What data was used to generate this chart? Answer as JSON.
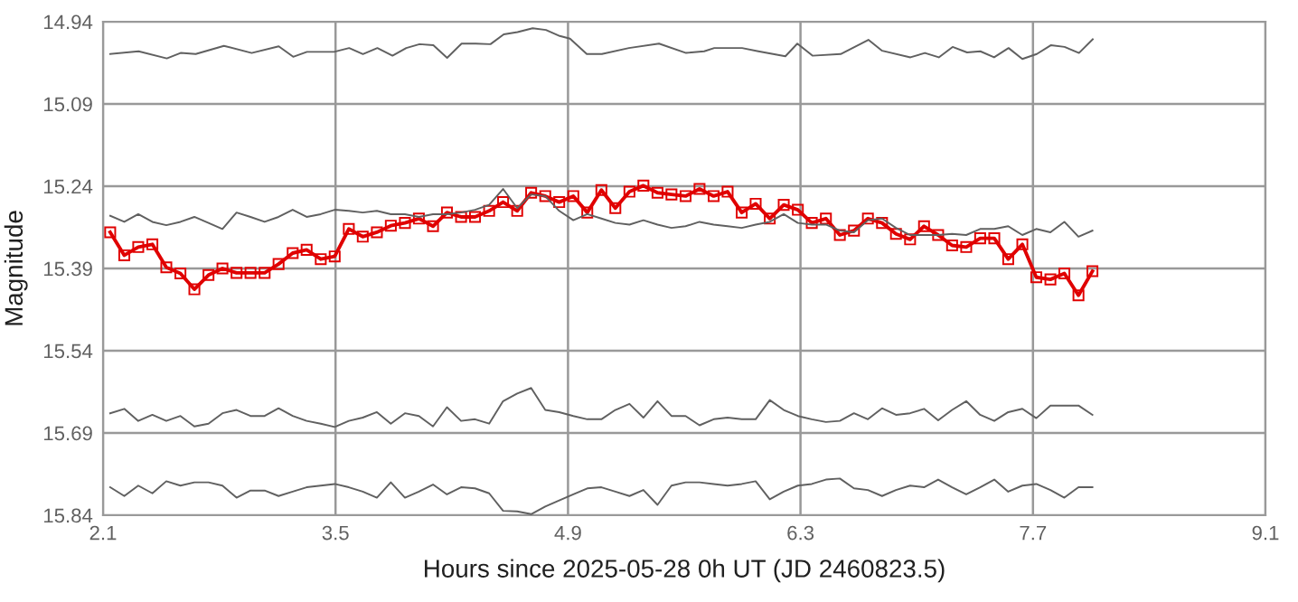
{
  "chart_data": {
    "type": "line",
    "xlabel": "Hours since 2025-05-28 0h UT (JD 2460823.5)",
    "ylabel": "Magnitude",
    "xlim": [
      2.1,
      9.1
    ],
    "xticks": [
      2.1,
      3.5,
      4.9,
      6.3,
      7.7,
      9.1
    ],
    "ylim": [
      15.84,
      14.94
    ],
    "yticks": [
      14.94,
      15.09,
      15.24,
      15.39,
      15.54,
      15.69,
      15.84
    ],
    "grid": true,
    "line_style": "solid",
    "x": [
      2.143,
      2.228,
      2.312,
      2.397,
      2.481,
      2.566,
      2.65,
      2.735,
      2.819,
      2.904,
      2.988,
      3.073,
      3.157,
      3.242,
      3.326,
      3.411,
      3.495,
      3.58,
      3.664,
      3.749,
      3.833,
      3.918,
      4.002,
      4.087,
      4.171,
      4.256,
      4.34,
      4.425,
      4.509,
      4.594,
      4.678,
      4.763,
      4.847,
      4.932,
      5.016,
      5.101,
      5.185,
      5.27,
      5.354,
      5.439,
      5.523,
      5.608,
      5.692,
      5.777,
      5.861,
      5.946,
      6.03,
      6.115,
      6.199,
      6.284,
      6.368,
      6.453,
      6.537,
      6.622,
      6.706,
      6.791,
      6.875,
      6.96,
      7.044,
      7.129,
      7.213,
      7.298,
      7.382,
      7.467,
      7.551,
      7.636,
      7.72,
      7.805,
      7.889,
      7.974,
      8.058
    ],
    "series": [
      {
        "color": "#606060",
        "marker": "none",
        "x": [
          2.143,
          2.314,
          2.484,
          2.567,
          2.658,
          2.828,
          2.995,
          3.158,
          3.245,
          3.328,
          3.491,
          3.582,
          3.665,
          3.752,
          3.843,
          3.926,
          4.006,
          4.089,
          4.172,
          4.259,
          4.343,
          4.433,
          4.513,
          4.596,
          4.687,
          4.767,
          4.85,
          4.912,
          5.013,
          5.104,
          5.267,
          5.448,
          5.611,
          5.72,
          5.781,
          5.948,
          6.046,
          6.209,
          6.281,
          6.372,
          6.542,
          6.709,
          6.792,
          6.962,
          7.049,
          7.133,
          7.216,
          7.303,
          7.383,
          7.466,
          7.553,
          7.636,
          7.723,
          7.807,
          7.89,
          7.977,
          8.06
        ],
        "values": [
          14.999,
          14.994,
          15.007,
          14.997,
          14.999,
          14.984,
          14.997,
          14.985,
          15.004,
          14.995,
          14.995,
          14.988,
          14.999,
          14.988,
          15.002,
          14.988,
          14.981,
          14.983,
          15.006,
          14.98,
          14.98,
          14.981,
          14.963,
          14.959,
          14.952,
          14.955,
          14.966,
          14.971,
          14.999,
          14.999,
          14.988,
          14.98,
          14.997,
          14.994,
          14.988,
          14.988,
          14.994,
          15.003,
          14.98,
          15.002,
          14.999,
          14.973,
          14.993,
          15.005,
          14.997,
          15.005,
          14.986,
          14.996,
          14.994,
          15.005,
          14.988,
          15.008,
          14.999,
          14.983,
          14.986,
          14.997,
          14.972
        ]
      },
      {
        "color": "#606060",
        "marker": "none",
        "values": [
          15.294,
          15.305,
          15.291,
          15.305,
          15.311,
          15.305,
          15.296,
          15.307,
          15.318,
          15.288,
          15.296,
          15.305,
          15.296,
          15.283,
          15.296,
          15.291,
          15.283,
          15.285,
          15.288,
          15.285,
          15.291,
          15.291,
          15.296,
          15.291,
          15.291,
          15.288,
          15.283,
          15.274,
          15.245,
          15.28,
          15.255,
          15.258,
          15.285,
          15.302,
          15.291,
          15.299,
          15.307,
          15.31,
          15.302,
          15.31,
          15.316,
          15.313,
          15.305,
          15.31,
          15.313,
          15.316,
          15.31,
          15.305,
          15.291,
          15.307,
          15.31,
          15.31,
          15.321,
          15.324,
          15.302,
          15.299,
          15.316,
          15.329,
          15.329,
          15.329,
          15.327,
          15.329,
          15.318,
          15.318,
          15.313,
          15.329,
          15.318,
          15.324,
          15.305,
          15.332,
          15.321
        ]
      },
      {
        "color": "#606060",
        "marker": "none",
        "values": [
          15.654,
          15.646,
          15.668,
          15.657,
          15.668,
          15.659,
          15.678,
          15.673,
          15.654,
          15.648,
          15.659,
          15.659,
          15.645,
          15.659,
          15.668,
          15.673,
          15.679,
          15.668,
          15.662,
          15.652,
          15.673,
          15.654,
          15.659,
          15.678,
          15.643,
          15.668,
          15.665,
          15.673,
          15.632,
          15.618,
          15.608,
          15.648,
          15.652,
          15.659,
          15.665,
          15.665,
          15.648,
          15.637,
          15.662,
          15.632,
          15.659,
          15.659,
          15.676,
          15.665,
          15.662,
          15.665,
          15.665,
          15.63,
          15.648,
          15.659,
          15.665,
          15.67,
          15.668,
          15.654,
          15.665,
          15.645,
          15.657,
          15.654,
          15.646,
          15.667,
          15.648,
          15.632,
          15.657,
          15.668,
          15.652,
          15.646,
          15.663,
          15.64,
          15.64,
          15.64,
          15.657
        ]
      },
      {
        "color": "#606060",
        "marker": "none",
        "values": [
          15.789,
          15.805,
          15.786,
          15.8,
          15.778,
          15.786,
          15.78,
          15.78,
          15.786,
          15.808,
          15.795,
          15.795,
          15.805,
          15.797,
          15.789,
          15.786,
          15.783,
          15.789,
          15.797,
          15.808,
          15.78,
          15.808,
          15.797,
          15.784,
          15.802,
          15.789,
          15.791,
          15.8,
          15.832,
          15.833,
          15.838,
          15.824,
          15.813,
          15.802,
          15.791,
          15.789,
          15.797,
          15.805,
          15.794,
          15.821,
          15.786,
          15.78,
          15.78,
          15.783,
          15.786,
          15.783,
          15.778,
          15.811,
          15.797,
          15.786,
          15.783,
          15.775,
          15.773,
          15.791,
          15.794,
          15.805,
          15.794,
          15.786,
          15.789,
          15.775,
          15.789,
          15.802,
          15.789,
          15.775,
          15.797,
          15.786,
          15.783,
          15.794,
          15.808,
          15.789,
          15.789
        ]
      },
      {
        "color": "#e00000",
        "marker": "square",
        "values": [
          15.324,
          15.366,
          15.351,
          15.346,
          15.388,
          15.399,
          15.428,
          15.402,
          15.39,
          15.398,
          15.398,
          15.398,
          15.382,
          15.362,
          15.356,
          15.373,
          15.368,
          15.318,
          15.332,
          15.324,
          15.312,
          15.307,
          15.299,
          15.313,
          15.288,
          15.296,
          15.296,
          15.285,
          15.269,
          15.285,
          15.252,
          15.258,
          15.269,
          15.258,
          15.288,
          15.247,
          15.28,
          15.25,
          15.239,
          15.252,
          15.255,
          15.258,
          15.245,
          15.258,
          15.25,
          15.288,
          15.272,
          15.299,
          15.274,
          15.283,
          15.307,
          15.299,
          15.329,
          15.321,
          15.299,
          15.307,
          15.327,
          15.337,
          15.313,
          15.329,
          15.348,
          15.351,
          15.335,
          15.335,
          15.373,
          15.346,
          15.406,
          15.41,
          15.399,
          15.439,
          15.395
        ]
      }
    ]
  }
}
